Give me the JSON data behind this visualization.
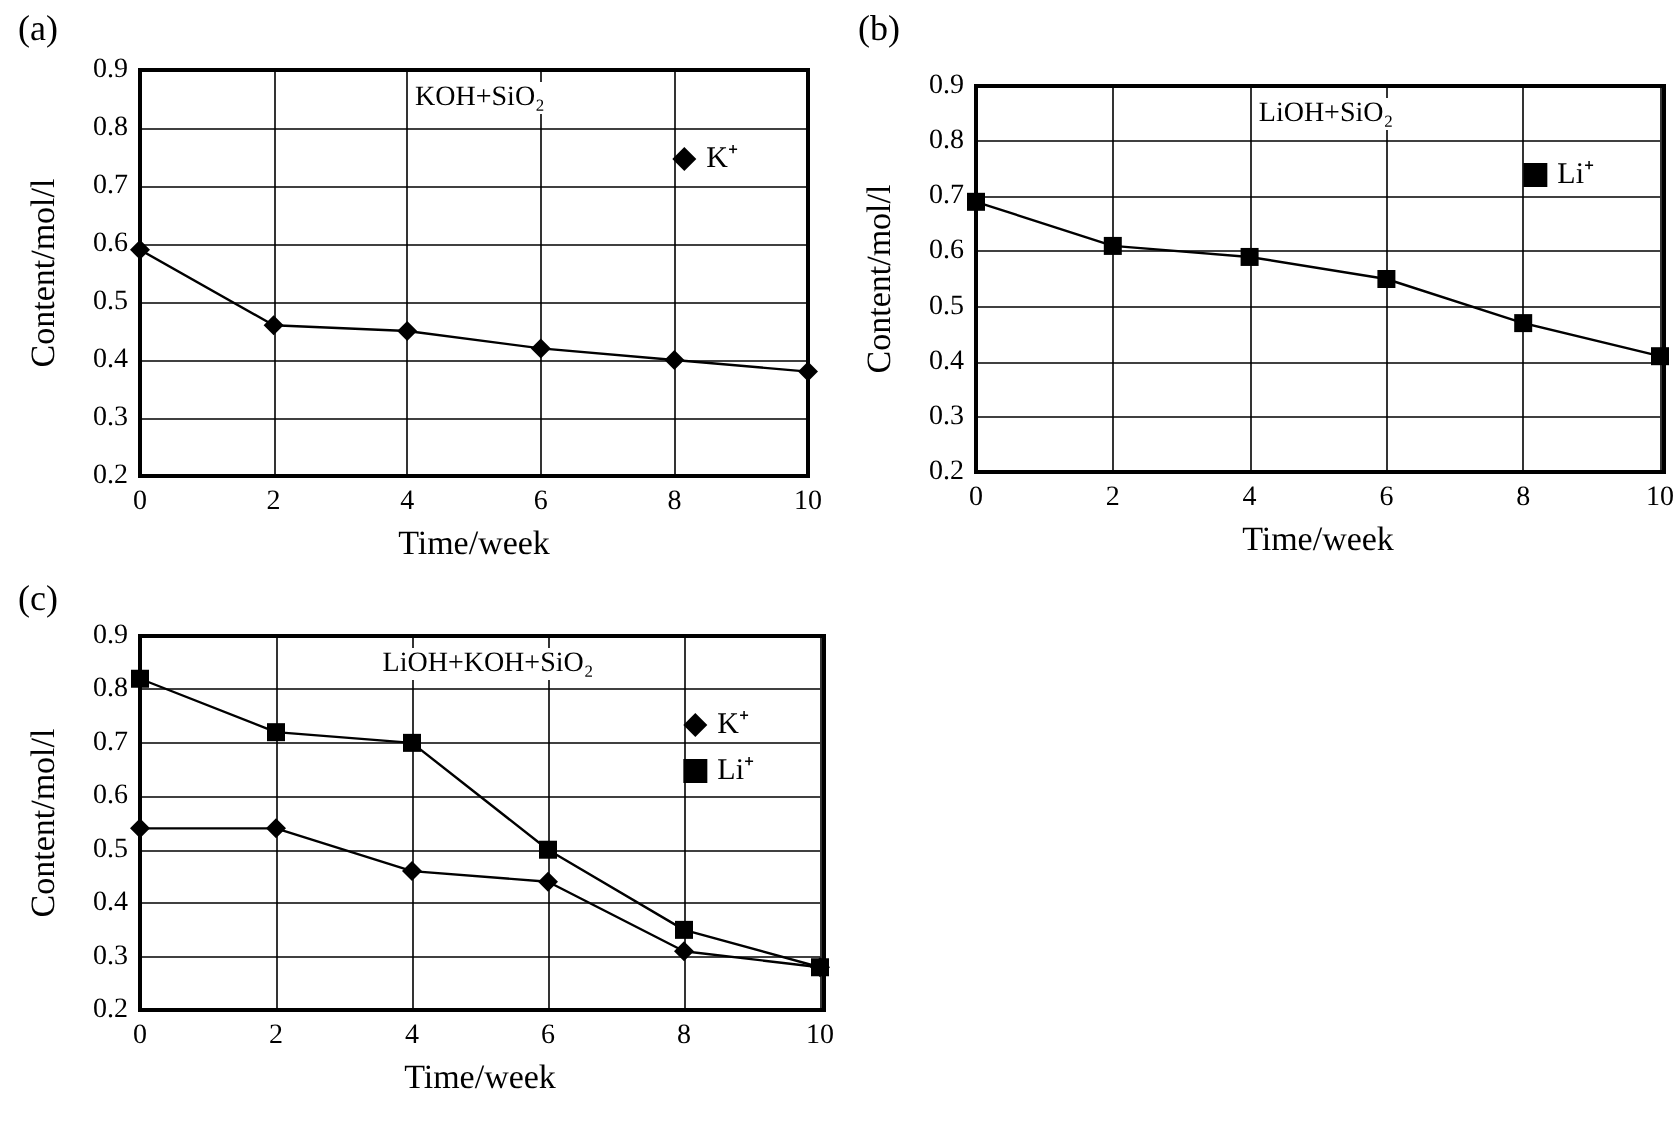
{
  "chart_data": [
    {
      "type": "line",
      "title": "(a)",
      "xlabel": "Time/week",
      "ylabel": "Content/mol/l",
      "annotations": [
        "KOH+SiO₂"
      ],
      "x": [
        0,
        2,
        4,
        6,
        8,
        10
      ],
      "series": [
        {
          "name": "K⁺",
          "color": "#000000",
          "marker": "diamond",
          "values": [
            0.59,
            0.46,
            0.45,
            0.42,
            0.4,
            0.38
          ]
        }
      ],
      "xlim": [
        0,
        10
      ],
      "xticks": [
        0,
        2,
        4,
        6,
        8,
        10
      ],
      "ylim": [
        0.2,
        0.9
      ],
      "yticks": [
        0.2,
        0.3,
        0.4,
        0.5,
        0.6,
        0.7,
        0.8,
        0.9
      ],
      "grid": true,
      "legend": "top right",
      "line_style": "solid"
    },
    {
      "type": "line",
      "title": "(b)",
      "xlabel": "Time/week",
      "ylabel": "Content/mol/l",
      "annotations": [
        "LiOH+SiO₂"
      ],
      "x": [
        0,
        2,
        4,
        6,
        8,
        10
      ],
      "series": [
        {
          "name": "Li⁺",
          "color": "#000000",
          "marker": "square",
          "values": [
            0.69,
            0.61,
            0.59,
            0.55,
            0.47,
            0.41
          ]
        }
      ],
      "xlim": [
        0,
        10
      ],
      "xticks": [
        0,
        2,
        4,
        6,
        8,
        10
      ],
      "ylim": [
        0.2,
        0.9
      ],
      "yticks": [
        0.2,
        0.3,
        0.4,
        0.5,
        0.6,
        0.7,
        0.8,
        0.9
      ],
      "grid": true,
      "legend": "top right",
      "line_style": "solid"
    },
    {
      "type": "line",
      "title": "(c)",
      "xlabel": "Time/week",
      "ylabel": "Content/mol/l",
      "annotations": [
        "LiOH+KOH+SiO₂"
      ],
      "x": [
        0,
        2,
        4,
        6,
        8,
        10
      ],
      "series": [
        {
          "name": "K⁺",
          "color": "#000000",
          "marker": "diamond",
          "values": [
            0.54,
            0.54,
            0.46,
            0.44,
            0.31,
            0.28
          ]
        },
        {
          "name": "Li⁺",
          "color": "#000000",
          "marker": "square",
          "values": [
            0.82,
            0.72,
            0.7,
            0.5,
            0.35,
            0.28
          ]
        }
      ],
      "xlim": [
        0,
        10
      ],
      "xticks": [
        0,
        2,
        4,
        6,
        8,
        10
      ],
      "ylim": [
        0.2,
        0.9
      ],
      "yticks": [
        0.2,
        0.3,
        0.4,
        0.5,
        0.6,
        0.7,
        0.8,
        0.9
      ],
      "grid": true,
      "legend": "top right",
      "line_style": "solid"
    }
  ]
}
